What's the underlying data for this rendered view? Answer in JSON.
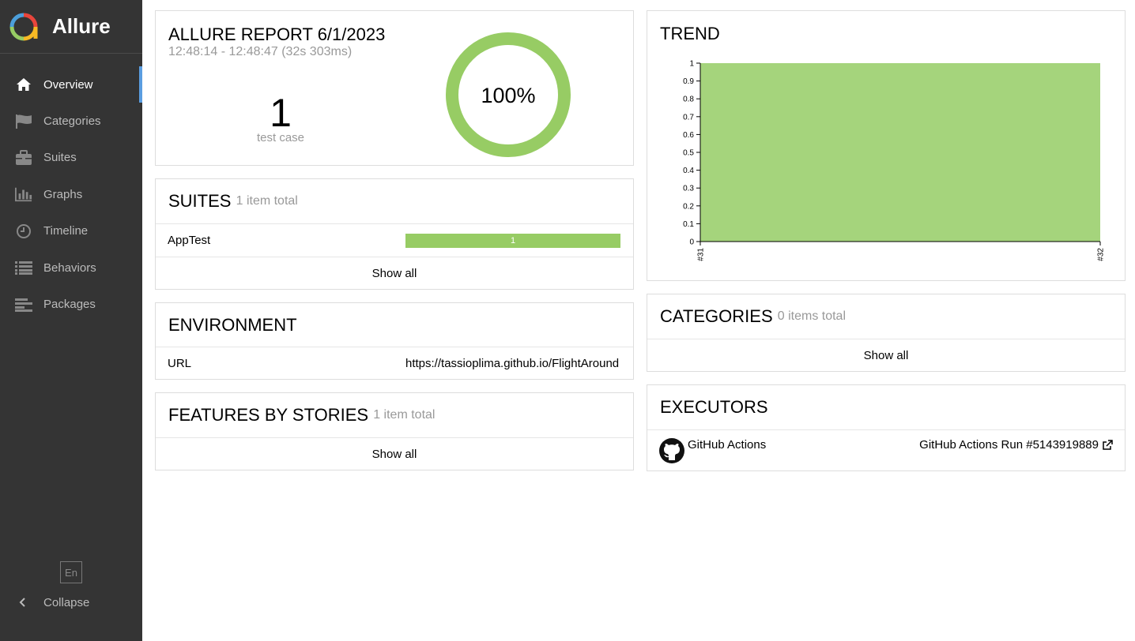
{
  "app": {
    "name": "Allure"
  },
  "sidebar": {
    "items": [
      {
        "label": "Overview",
        "icon": "home-icon",
        "active": true
      },
      {
        "label": "Categories",
        "icon": "flag-icon"
      },
      {
        "label": "Suites",
        "icon": "briefcase-icon"
      },
      {
        "label": "Graphs",
        "icon": "bar-chart-icon"
      },
      {
        "label": "Timeline",
        "icon": "clock-icon"
      },
      {
        "label": "Behaviors",
        "icon": "list-icon"
      },
      {
        "label": "Packages",
        "icon": "align-left-icon"
      }
    ],
    "language": "En",
    "collapse_label": "Collapse"
  },
  "summary": {
    "title": "ALLURE REPORT 6/1/2023",
    "time": "12:48:14 - 12:48:47 (32s 303ms)",
    "count": "1",
    "count_label": "test case",
    "percent": "100%",
    "passed_fraction": 1.0,
    "color_passed": "#97cc64"
  },
  "suites": {
    "title": "SUITES",
    "subtitle": "1 item total",
    "rows": [
      {
        "name": "AppTest",
        "passed": "1"
      }
    ],
    "show_all": "Show all"
  },
  "environment": {
    "title": "ENVIRONMENT",
    "rows": [
      {
        "key": "URL",
        "value": "https://tassioplima.github.io/FlightAround"
      }
    ]
  },
  "features": {
    "title": "FEATURES BY STORIES",
    "subtitle": "1 item total",
    "show_all": "Show all"
  },
  "trend": {
    "title": "TREND"
  },
  "chart_data": {
    "type": "area",
    "title": "TREND",
    "categories": [
      "#31",
      "#32"
    ],
    "series": [
      {
        "values": [
          1,
          1
        ],
        "color": "#a5d47c"
      }
    ],
    "ylim": [
      0,
      1
    ],
    "yticks": [
      "0",
      "0.1",
      "0.2",
      "0.3",
      "0.4",
      "0.5",
      "0.6",
      "0.7",
      "0.8",
      "0.9",
      "1"
    ],
    "grid": false
  },
  "categories": {
    "title": "CATEGORIES",
    "subtitle": "0 items total",
    "show_all": "Show all"
  },
  "executors": {
    "title": "EXECUTORS",
    "name": "GitHub Actions",
    "run": "GitHub Actions Run #5143919889",
    "icon": "github-icon"
  },
  "colors": {
    "sidebar_bg": "#343434",
    "accent": "#5a9de0",
    "passed": "#97cc64"
  }
}
